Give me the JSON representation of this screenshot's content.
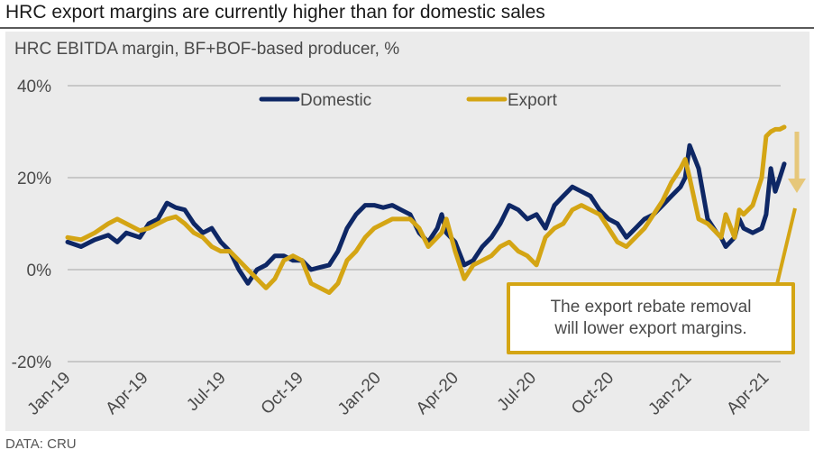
{
  "headline": "HRC export margins are currently higher than for domestic sales",
  "source": "DATA: CRU",
  "colors": {
    "domestic": "#0e2765",
    "export": "#d4a514",
    "arrow": "#e6c77a",
    "gridline": "#bdbdbd",
    "panel": "#ebebeb"
  },
  "callout": {
    "line1": "The export rebate removal",
    "line2": "will lower export margins."
  },
  "chart_data": {
    "type": "line",
    "title": "HRC EBITDA margin, BF+BOF-based producer, %",
    "xlabel": "",
    "ylabel": "",
    "ylim": [
      -20,
      40
    ],
    "yticks": [
      -20,
      0,
      20,
      40
    ],
    "ytick_labels": [
      "-20%",
      "0%",
      "20%",
      "40%"
    ],
    "x_range_months": [
      0,
      27.7
    ],
    "xtick_positions_months": [
      0,
      3,
      6,
      9,
      12,
      15,
      18,
      21,
      24,
      27
    ],
    "xtick_labels": [
      "Jan-19",
      "Apr-19",
      "Jul-19",
      "Oct-19",
      "Jan-20",
      "Apr-20",
      "Jul-20",
      "Oct-20",
      "Jan-21",
      "Apr-21"
    ],
    "grid": true,
    "legend": "top-center",
    "x_months": [
      0,
      0.52,
      1.05,
      1.57,
      1.92,
      2.27,
      2.79,
      3.14,
      3.49,
      3.84,
      4.18,
      4.53,
      4.88,
      5.23,
      5.57,
      5.92,
      6.27,
      6.62,
      6.97,
      7.32,
      7.67,
      8.01,
      8.36,
      8.71,
      9.06,
      9.41,
      9.76,
      10.11,
      10.45,
      10.8,
      11.15,
      11.5,
      11.85,
      12.2,
      12.55,
      12.89,
      13.07,
      13.24,
      13.59,
      13.94,
      14.29,
      14.46,
      14.64,
      14.98,
      15.33,
      15.68,
      16.03,
      16.38,
      16.72,
      17.07,
      17.42,
      17.77,
      18.12,
      18.47,
      18.82,
      19.16,
      19.51,
      19.86,
      20.21,
      20.56,
      20.91,
      21.25,
      21.6,
      21.95,
      22.3,
      22.65,
      23.0,
      23.34,
      23.69,
      23.87,
      24.04,
      24.39,
      24.74,
      25.09,
      25.26,
      25.44,
      25.78,
      25.96,
      26.13,
      26.48,
      26.83,
      27.0,
      27.18,
      27.35,
      27.53,
      27.7
    ],
    "series": [
      {
        "name": "Domestic",
        "values": [
          6,
          5,
          6.5,
          7.5,
          6,
          8,
          7,
          10,
          11,
          14.5,
          13.5,
          13,
          10,
          8,
          9,
          6,
          4,
          0,
          -3,
          0,
          1,
          3,
          3,
          2,
          2,
          0,
          0.5,
          1,
          4,
          9,
          12,
          14,
          14,
          13.5,
          14,
          13,
          12.5,
          12,
          8,
          6,
          9,
          12,
          8,
          6,
          1,
          2,
          5,
          7,
          10,
          14,
          13,
          11,
          12,
          9,
          14,
          16,
          18,
          17,
          16,
          13,
          11,
          10,
          7,
          9,
          11,
          12,
          14,
          16,
          18,
          20,
          27,
          22,
          11,
          8,
          7,
          5,
          7,
          11,
          9,
          8,
          9,
          12,
          22,
          17,
          20,
          23
        ]
      },
      {
        "name": "Export",
        "values": [
          7,
          6.5,
          8,
          10,
          11,
          10,
          8.5,
          9,
          10,
          11,
          11.5,
          10,
          8,
          7,
          5,
          4,
          4,
          2,
          0,
          -2,
          -4,
          -2,
          2,
          3,
          2,
          -3,
          -4,
          -5,
          -3,
          2,
          4,
          7,
          9,
          10,
          11,
          11,
          11,
          11,
          9,
          5,
          7,
          8,
          11,
          4,
          -2,
          1,
          2,
          3,
          5,
          6,
          4,
          3,
          1,
          7,
          9,
          10,
          13,
          14,
          13,
          12,
          9,
          6,
          5,
          7,
          9,
          12,
          15,
          19,
          22,
          24,
          20,
          11,
          10,
          8,
          7,
          12,
          7,
          13,
          12,
          14,
          20,
          29,
          30,
          30.5,
          30.5,
          31
        ]
      }
    ],
    "annotations": [
      {
        "type": "arrow",
        "direction": "down",
        "series": "Export",
        "meaning": "export margins expected to fall"
      },
      {
        "type": "callout",
        "text": "The export rebate removal will lower export margins."
      }
    ]
  }
}
